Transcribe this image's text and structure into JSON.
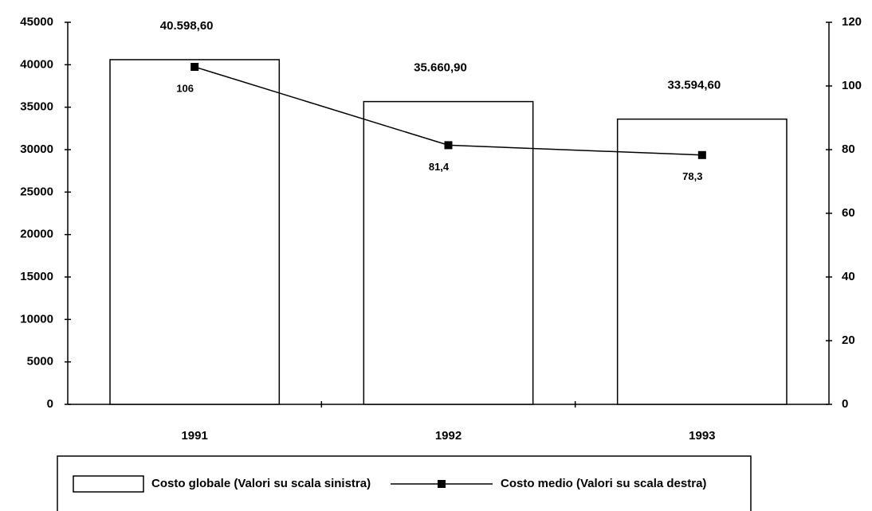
{
  "chart_data": {
    "type": "bar",
    "categories": [
      "1991",
      "1992",
      "1993"
    ],
    "series": [
      {
        "name": "Costo globale (Valori su scala sinistra)",
        "type": "bar",
        "color": "#000000",
        "axis": "y",
        "values": [
          40598.6,
          35660.9,
          33594.6
        ],
        "value_labels": [
          "40.598,60",
          "35.660,90",
          "33.594,60"
        ]
      },
      {
        "name": "Costo medio (Valori su scala destra)",
        "type": "line",
        "color": "#000000",
        "axis": "y2",
        "values": [
          106,
          81.4,
          78.3
        ],
        "value_labels": [
          "106",
          "81,4",
          "78,3"
        ]
      }
    ],
    "ylim": [
      0,
      45000
    ],
    "yticks": [
      0,
      5000,
      10000,
      15000,
      20000,
      25000,
      30000,
      35000,
      40000,
      45000
    ],
    "y2lim": [
      0,
      120
    ],
    "y2ticks": [
      0,
      20,
      40,
      60,
      80,
      100,
      120
    ],
    "grid": false
  }
}
